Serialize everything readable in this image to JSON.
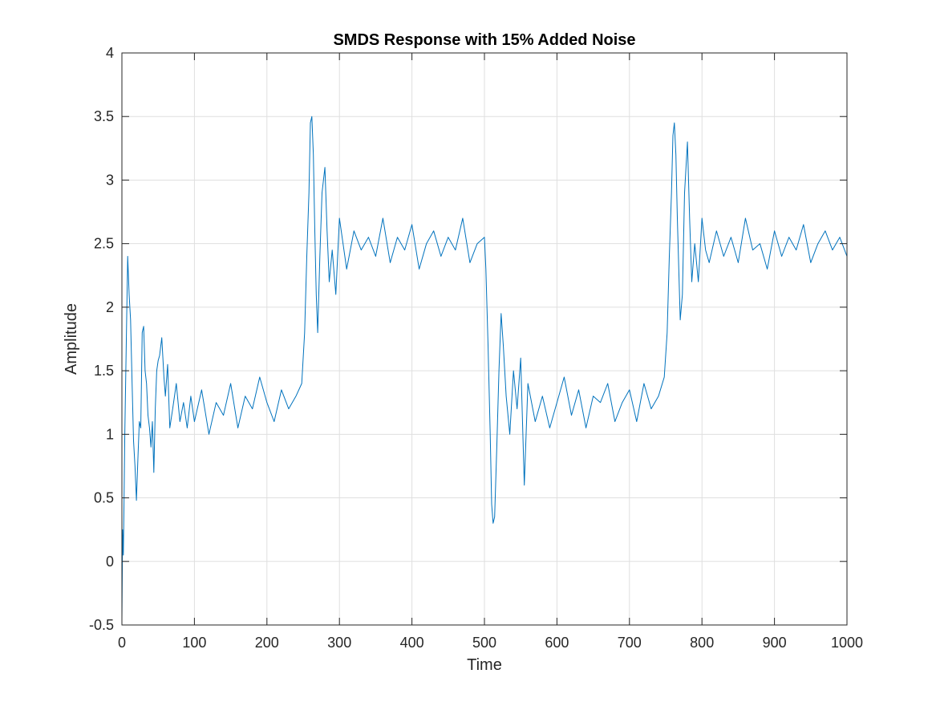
{
  "chart_data": {
    "type": "line",
    "title": "SMDS Response with 15% Added Noise",
    "xlabel": "Time",
    "ylabel": "Amplitude",
    "xlim": [
      0,
      1000
    ],
    "ylim": [
      -0.5,
      4
    ],
    "xticks": [
      0,
      100,
      200,
      300,
      400,
      500,
      600,
      700,
      800,
      900,
      1000
    ],
    "yticks": [
      -0.5,
      0,
      0.5,
      1,
      1.5,
      2,
      2.5,
      3,
      3.5,
      4
    ],
    "xtick_labels": [
      "0",
      "100",
      "200",
      "300",
      "400",
      "500",
      "600",
      "700",
      "800",
      "900",
      "1000"
    ],
    "ytick_labels": [
      "-0.5",
      "0",
      "0.5",
      "1",
      "1.5",
      "2",
      "2.5",
      "3",
      "3.5",
      "4"
    ],
    "grid": true,
    "legend": "none",
    "line_color": "#0072BD",
    "series": [
      {
        "x": [
          0,
          1,
          2,
          3,
          4,
          6,
          8,
          10,
          12,
          14,
          16,
          18,
          20,
          22,
          24,
          26,
          28,
          30,
          32,
          34,
          36,
          38,
          40,
          42,
          44,
          46,
          48,
          50,
          52,
          55,
          58,
          60,
          63,
          66,
          70,
          75,
          80,
          85,
          90,
          95,
          100,
          110,
          120,
          130,
          140,
          150,
          160,
          170,
          180,
          190,
          200,
          210,
          220,
          230,
          240,
          248,
          252,
          255,
          258,
          260,
          262,
          264,
          266,
          268,
          270,
          273,
          276,
          280,
          283,
          286,
          290,
          295,
          300,
          305,
          310,
          320,
          330,
          340,
          350,
          360,
          370,
          380,
          390,
          400,
          410,
          420,
          430,
          440,
          450,
          460,
          470,
          480,
          490,
          500,
          502,
          505,
          508,
          510,
          512,
          514,
          517,
          520,
          523,
          526,
          530,
          535,
          540,
          545,
          550,
          555,
          560,
          570,
          580,
          590,
          600,
          610,
          620,
          630,
          640,
          650,
          660,
          670,
          680,
          690,
          700,
          710,
          720,
          730,
          740,
          748,
          752,
          755,
          758,
          760,
          762,
          764,
          766,
          768,
          770,
          773,
          776,
          780,
          783,
          786,
          790,
          795,
          800,
          805,
          810,
          820,
          830,
          840,
          850,
          860,
          870,
          880,
          890,
          900,
          910,
          920,
          930,
          940,
          950,
          960,
          970,
          980,
          990,
          1000
        ],
        "y": [
          -0.45,
          0.25,
          0.05,
          0.5,
          1.0,
          1.7,
          2.4,
          2.1,
          1.9,
          1.4,
          0.95,
          0.75,
          0.48,
          0.8,
          1.1,
          1.05,
          1.8,
          1.85,
          1.5,
          1.4,
          1.15,
          1.05,
          0.9,
          1.1,
          0.7,
          1.2,
          1.5,
          1.58,
          1.62,
          1.76,
          1.45,
          1.3,
          1.55,
          1.05,
          1.2,
          1.4,
          1.1,
          1.25,
          1.05,
          1.3,
          1.1,
          1.35,
          1.0,
          1.25,
          1.15,
          1.4,
          1.05,
          1.3,
          1.2,
          1.45,
          1.25,
          1.1,
          1.35,
          1.2,
          1.3,
          1.4,
          1.8,
          2.4,
          2.9,
          3.45,
          3.5,
          3.2,
          2.6,
          2.1,
          1.8,
          2.4,
          2.9,
          3.1,
          2.6,
          2.2,
          2.45,
          2.1,
          2.7,
          2.5,
          2.3,
          2.6,
          2.45,
          2.55,
          2.4,
          2.7,
          2.35,
          2.55,
          2.45,
          2.65,
          2.3,
          2.5,
          2.6,
          2.4,
          2.55,
          2.45,
          2.7,
          2.35,
          2.5,
          2.55,
          2.3,
          1.7,
          1.0,
          0.45,
          0.3,
          0.35,
          0.9,
          1.5,
          1.95,
          1.7,
          1.3,
          1.0,
          1.5,
          1.2,
          1.6,
          0.6,
          1.4,
          1.1,
          1.3,
          1.05,
          1.25,
          1.45,
          1.15,
          1.35,
          1.05,
          1.3,
          1.25,
          1.4,
          1.1,
          1.25,
          1.35,
          1.1,
          1.4,
          1.2,
          1.3,
          1.45,
          1.8,
          2.4,
          2.9,
          3.35,
          3.45,
          3.2,
          2.7,
          2.3,
          1.9,
          2.1,
          2.9,
          3.3,
          2.7,
          2.2,
          2.5,
          2.2,
          2.7,
          2.45,
          2.35,
          2.6,
          2.4,
          2.55,
          2.35,
          2.7,
          2.45,
          2.5,
          2.3,
          2.6,
          2.4,
          2.55,
          2.45,
          2.65,
          2.35,
          2.5,
          2.6,
          2.45,
          2.55,
          2.4
        ]
      }
    ]
  }
}
